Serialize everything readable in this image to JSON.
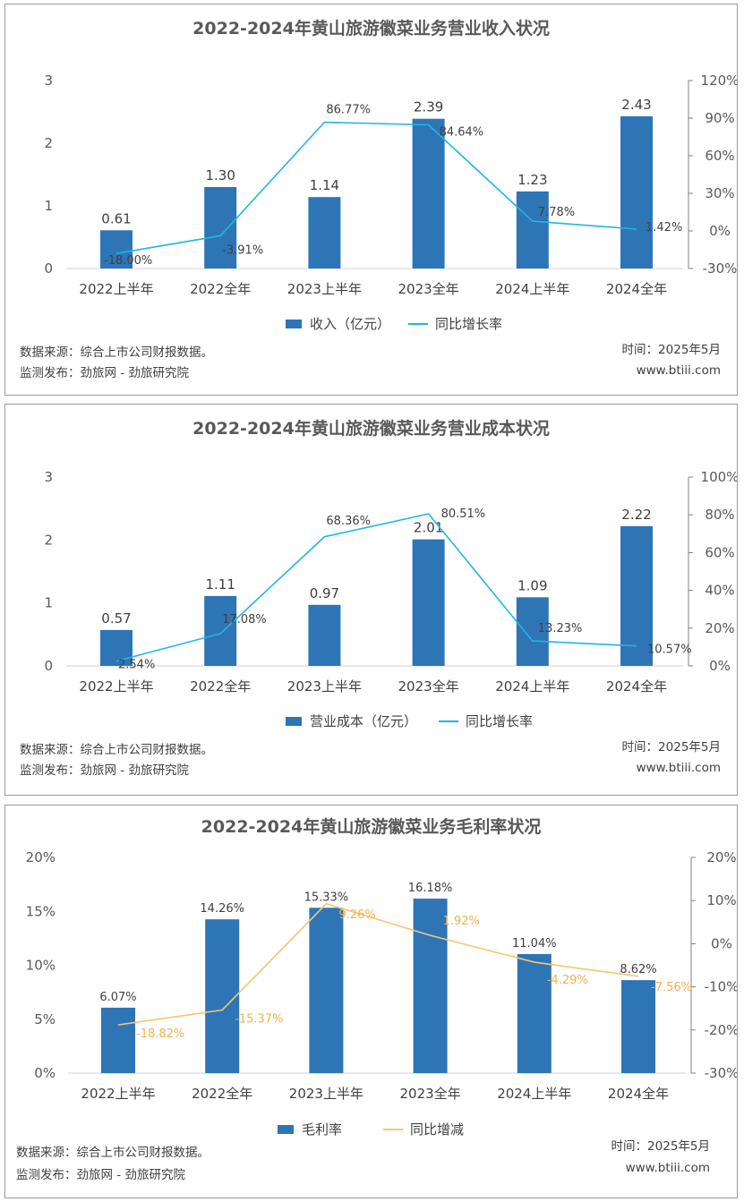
{
  "chart_data": [
    {
      "type": "bar",
      "title": "2022-2024年黄山旅游徽菜业务营业收入状况",
      "categories": [
        "2022上半年",
        "2022全年",
        "2023上半年",
        "2023全年",
        "2024上半年",
        "2024全年"
      ],
      "series": [
        {
          "name": "收入（亿元）",
          "type": "bar",
          "axis": "left",
          "values": [
            0.61,
            1.3,
            1.14,
            2.39,
            1.23,
            2.43
          ],
          "labels": [
            "0.61",
            "1.30",
            "1.14",
            "2.39",
            "1.23",
            "2.43"
          ]
        },
        {
          "name": "同比增长率",
          "type": "line",
          "axis": "right",
          "values": [
            -18.0,
            -3.91,
            86.77,
            84.64,
            7.78,
            1.42
          ],
          "labels": [
            "-18.00%",
            "-3.91%",
            "86.77%",
            "84.64%",
            "7.78%",
            "1.42%"
          ]
        }
      ],
      "left_axis": {
        "min": 0,
        "max": 3,
        "ticks": [
          "0",
          "1",
          "2",
          "3"
        ]
      },
      "right_axis": {
        "min": -30,
        "max": 120,
        "ticks": [
          "-30%",
          "0%",
          "30%",
          "60%",
          "90%",
          "120%"
        ]
      },
      "colors": {
        "bar": "#2E75B6",
        "line": "#22B5E0"
      },
      "legend_position": "bottom",
      "grid": false,
      "source": "数据来源：综合上市公司财报数据。",
      "publisher": "监测发布：劲旅网 - 劲旅研究院",
      "time": "时间：2025年5月",
      "site": "www.btiii.com"
    },
    {
      "type": "bar",
      "title": "2022-2024年黄山旅游徽菜业务营业成本状况",
      "categories": [
        "2022上半年",
        "2022全年",
        "2023上半年",
        "2023全年",
        "2024上半年",
        "2024全年"
      ],
      "series": [
        {
          "name": "营业成本（亿元）",
          "type": "bar",
          "axis": "left",
          "values": [
            0.57,
            1.11,
            0.97,
            2.01,
            1.09,
            2.22
          ],
          "labels": [
            "0.57",
            "1.11",
            "0.97",
            "2.01",
            "1.09",
            "2.22"
          ]
        },
        {
          "name": "同比增长率",
          "type": "line",
          "axis": "right",
          "values": [
            2.54,
            17.08,
            68.36,
            80.51,
            13.23,
            10.57
          ],
          "labels": [
            "2.54%",
            "17.08%",
            "68.36%",
            "80.51%",
            "13.23%",
            "10.57%"
          ]
        }
      ],
      "left_axis": {
        "min": 0,
        "max": 3,
        "ticks": [
          "0",
          "1",
          "2",
          "3"
        ]
      },
      "right_axis": {
        "min": 0,
        "max": 100,
        "ticks": [
          "0%",
          "20%",
          "40%",
          "60%",
          "80%",
          "100%"
        ]
      },
      "colors": {
        "bar": "#2E75B6",
        "line": "#22B5E0"
      },
      "legend_position": "bottom",
      "grid": false,
      "source": "数据来源：综合上市公司财报数据。",
      "publisher": "监测发布：劲旅网 - 劲旅研究院",
      "time": "时间：2025年5月",
      "site": "www.btiii.com"
    },
    {
      "type": "bar",
      "title": "2022-2024年黄山旅游徽菜业务毛利率状况",
      "categories": [
        "2022上半年",
        "2022全年",
        "2023上半年",
        "2023全年",
        "2024上半年",
        "2024全年"
      ],
      "series": [
        {
          "name": "毛利率",
          "type": "bar",
          "axis": "left",
          "values": [
            6.07,
            14.26,
            15.33,
            16.18,
            11.04,
            8.62
          ],
          "labels": [
            "6.07%",
            "14.26%",
            "15.33%",
            "16.18%",
            "11.04%",
            "8.62%"
          ]
        },
        {
          "name": "同比增减",
          "type": "line",
          "axis": "right",
          "values": [
            -18.82,
            -15.37,
            9.26,
            1.92,
            -4.29,
            -7.56
          ],
          "labels": [
            "-18.82%",
            "-15.37%",
            "9.26%",
            "1.92%",
            "-4.29%",
            "-7.56%"
          ]
        }
      ],
      "left_axis": {
        "min": 0,
        "max": 20,
        "ticks": [
          "0%",
          "5%",
          "10%",
          "15%",
          "20%"
        ]
      },
      "right_axis": {
        "min": -30,
        "max": 20,
        "ticks": [
          "-30%",
          "-20%",
          "-10%",
          "0%",
          "10%",
          "20%"
        ]
      },
      "colors": {
        "bar": "#2E75B6",
        "line": "#F8C471"
      },
      "legend_position": "bottom",
      "grid": false,
      "source": "数据来源：综合上市公司财报数据。",
      "publisher": "监测发布：劲旅网 - 劲旅研究院",
      "time": "时间：2025年5月",
      "site": "www.btiii.com"
    }
  ]
}
